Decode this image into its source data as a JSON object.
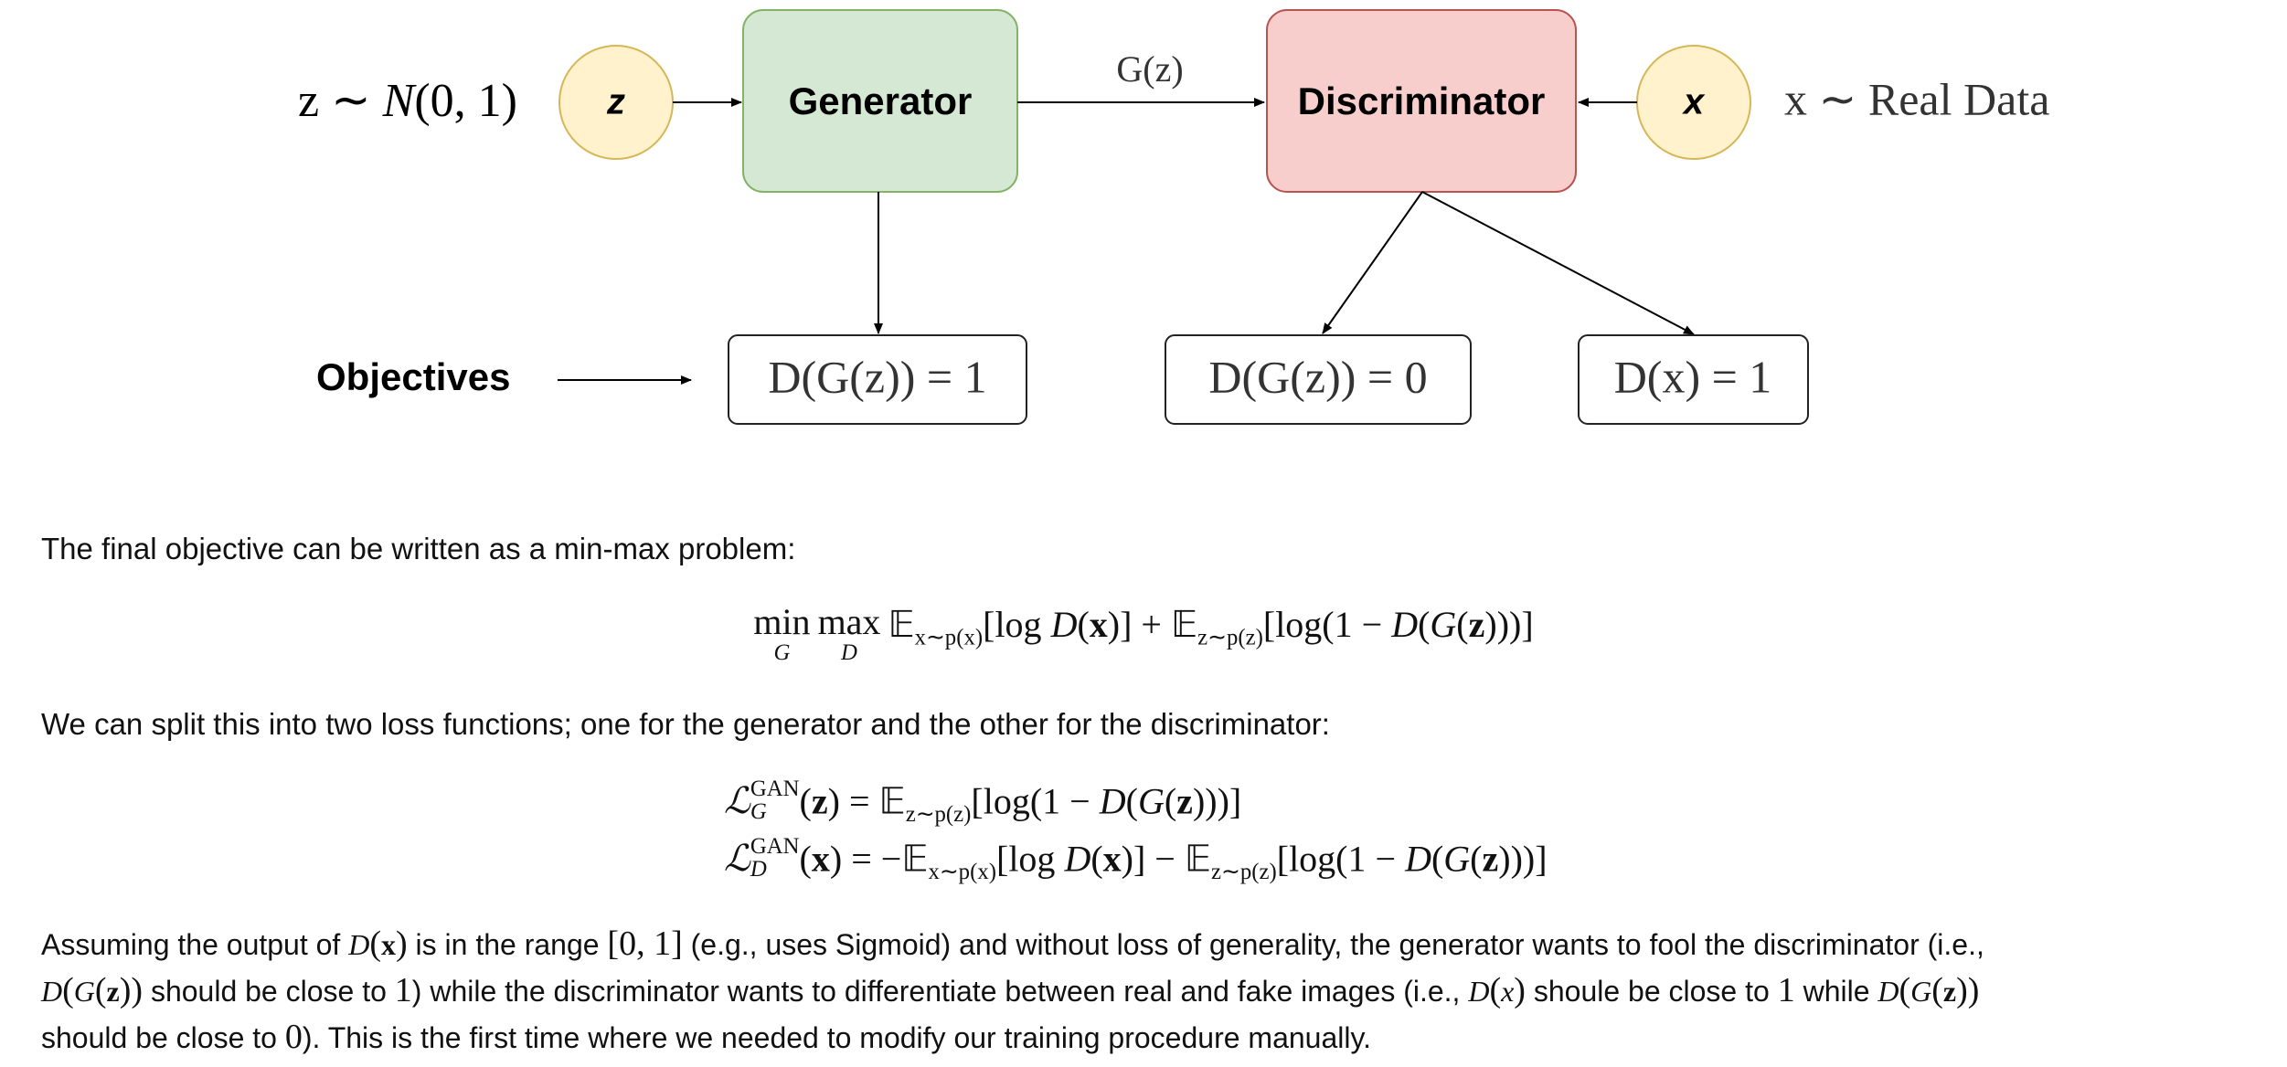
{
  "diagram": {
    "noise_label": [
      "z ∼ ",
      "N",
      "(0, 1)"
    ],
    "nodes": [
      {
        "label": "z"
      },
      {
        "label": "Generator"
      },
      {
        "label": "Discriminator"
      },
      {
        "label": "x"
      }
    ],
    "edge_label": "G(z)",
    "data_label": "x ∼ Real Data",
    "objectives_label": "Objectives",
    "objectives": [
      "D(G(z)) = 1",
      "D(G(z)) = 0",
      "D(x) = 1"
    ]
  },
  "text": {
    "paragraph_1": "The final objective can be written as a min-max problem:",
    "eq_minmax": [
      "min",
      "G",
      "max",
      "D",
      "𝔼",
      "x∼p(x)",
      "[log ",
      "D",
      "(",
      "x",
      ")] + ",
      "𝔼",
      "z∼p(z)",
      "[log(1 − ",
      "D",
      "(",
      "G",
      "(",
      "z",
      ")))]"
    ],
    "paragraph_2": "We can split this into two loss functions; one for the generator and the other for the discriminator:",
    "eq_loss_g": [
      "ℒ",
      "GAN",
      "G",
      "(",
      "z",
      ") = ",
      "𝔼",
      "z∼p(z)",
      "[log(1 − ",
      "D",
      "(",
      "G",
      "(",
      "z",
      ")))]"
    ],
    "eq_loss_d": [
      "ℒ",
      "GAN",
      "D",
      "(",
      "x",
      ") = −",
      "𝔼",
      "x∼p(x)",
      "[log ",
      "D",
      "(",
      "x",
      ")] − ",
      "𝔼",
      "z∼p(z)",
      "[log(1 − ",
      "D",
      "(",
      "G",
      "(",
      "z",
      ")))]"
    ],
    "paragraph_3": [
      "Assuming the output of ",
      "D",
      "(",
      "x",
      ")",
      " is in the range ",
      "[0, 1]",
      " (e.g., uses Sigmoid) and without loss of generality, the generator wants to fool the discriminator (i.e.,",
      "D",
      "(",
      "G",
      "(",
      "z",
      "))",
      " should be close to ",
      "1",
      ") while the discriminator wants to differentiate between real and fake images (i.e., ",
      "D",
      "(",
      "x",
      ")",
      " shoule be close to ",
      "1",
      " while ",
      "D",
      "(",
      "G",
      "(",
      "z",
      "))",
      "should be close to ",
      "0",
      "). This is the first time where we needed to modify our training procedure manually."
    ]
  }
}
